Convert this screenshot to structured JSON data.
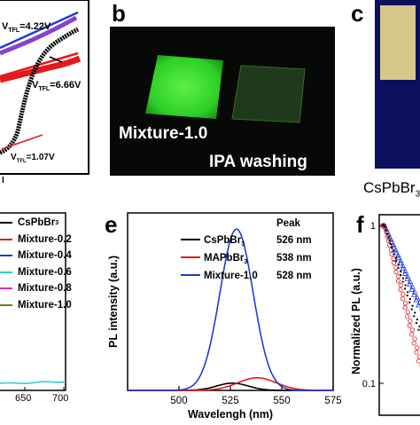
{
  "panels": {
    "b": "b",
    "c": "c",
    "e": "e",
    "f": "f"
  },
  "panel_a": {
    "v_labels": [
      {
        "prefix": "V",
        "sub": "TFL",
        "value": "=4.22V"
      },
      {
        "prefix": "V",
        "sub": "TFL",
        "value": "=6.66V"
      },
      {
        "prefix": "V",
        "sub": "TFL",
        "value": "=1.07V"
      }
    ],
    "bottom_mark": "I"
  },
  "panel_b": {
    "caption_left": "Mixture-1.0",
    "caption_right": "IPA washing",
    "glow_color": "#31d42b",
    "bg_color": "#070907"
  },
  "panel_c": {
    "caption": "CsPbBr",
    "top_color": "#d8c78a",
    "bottom_color": "#0b0f5e"
  },
  "panel_d": {
    "legend": [
      {
        "name": "CsPbBr",
        "sub": "3",
        "color": "#000000"
      },
      {
        "name": "Mixture-0.2",
        "sub": "",
        "color": "#e41a1c"
      },
      {
        "name": "Mixture-0.4",
        "sub": "",
        "color": "#1f3bd6"
      },
      {
        "name": "Mixture-0.6",
        "sub": "",
        "color": "#29c9d6"
      },
      {
        "name": "Mixture-0.8",
        "sub": "",
        "color": "#d12ec8"
      },
      {
        "name": "Mixture-1.0",
        "sub": "",
        "color": "#6b7d1a"
      }
    ],
    "x_ticks": [
      "650",
      "700"
    ]
  },
  "chart_data": [
    {
      "type": "line",
      "panel": "e",
      "xlabel": "Wavelengh (nm)",
      "ylabel": "PL intensity (a.u.)",
      "xlim": [
        475,
        575
      ],
      "ylim": [
        0,
        1.1
      ],
      "x_ticks": [
        500,
        525,
        550,
        575
      ],
      "legend_header": "Peak",
      "series": [
        {
          "name": "CsPbBr",
          "sub": "3",
          "peak_label": "526 nm",
          "color": "#000000",
          "center": 526,
          "fwhm": 18,
          "amplitude": 0.045
        },
        {
          "name": "MAPbBr",
          "sub": "3",
          "peak_label": "538 nm",
          "color": "#e41a1c",
          "center": 538,
          "fwhm": 22,
          "amplitude": 0.078
        },
        {
          "name": "Mixture-1.0",
          "sub": "",
          "peak_label": "528 nm",
          "color": "#1f3bd6",
          "center": 528,
          "fwhm": 19,
          "amplitude": 1.0
        }
      ]
    },
    {
      "type": "scatter",
      "panel": "f",
      "ylabel": "Normalized PL (a.u.)",
      "y_ticks": [
        "1",
        "0.1"
      ],
      "scale": "log"
    }
  ]
}
